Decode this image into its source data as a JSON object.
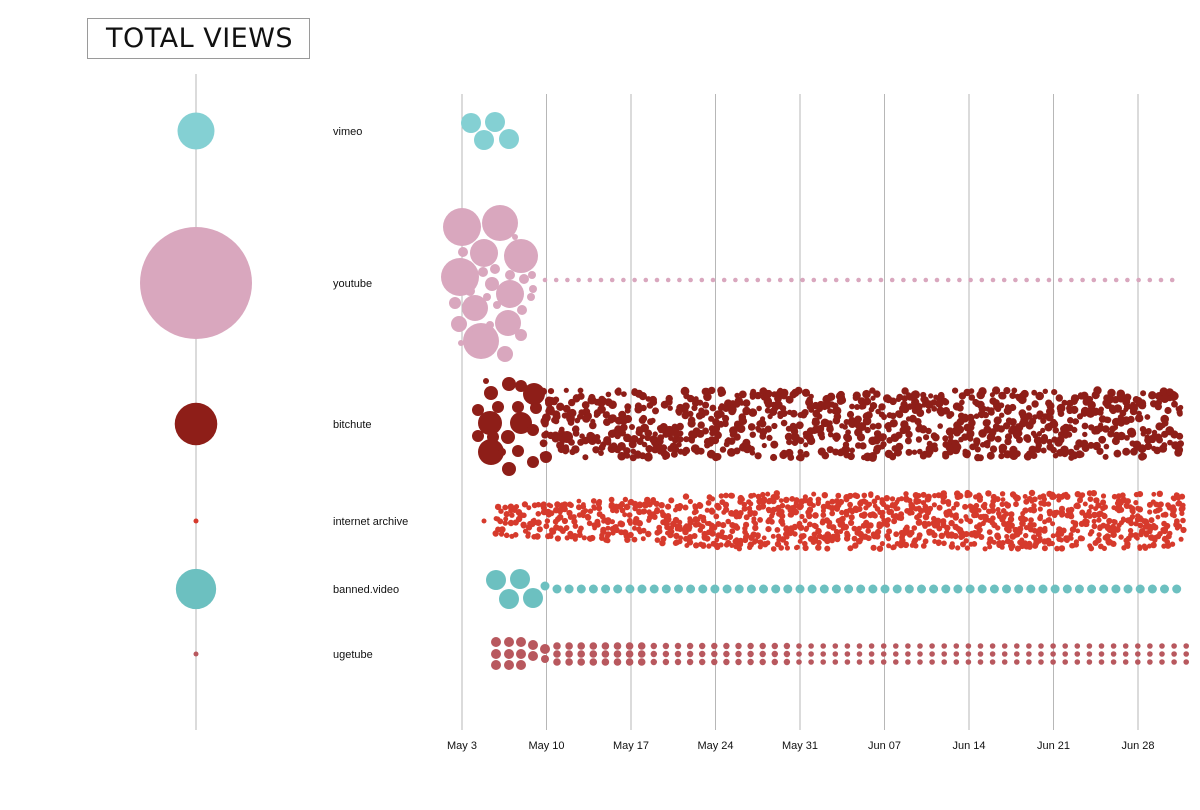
{
  "title": "TOTAL VIEWS",
  "colors": {
    "vimeo": "#84d0d3",
    "youtube": "#d9a7be",
    "bitchute": "#8e1e18",
    "internet_archive": "#d63a2c",
    "banned_video": "#6cc0c0",
    "ugetube": "#b8585e",
    "gridline": "#b7b7b7",
    "axis_line": "#b7b7b7"
  },
  "chart_data": {
    "type": "scatter",
    "subtype": "beeswarm timeline with total-size circles",
    "title": "TOTAL VIEWS",
    "x_axis": {
      "type": "date",
      "range": [
        "2020-05-03",
        "2020-07-02"
      ],
      "ticks": [
        {
          "date": "2020-05-03",
          "label": "May 3"
        },
        {
          "date": "2020-05-10",
          "label": "May 10"
        },
        {
          "date": "2020-05-17",
          "label": "May 17"
        },
        {
          "date": "2020-05-24",
          "label": "May 24"
        },
        {
          "date": "2020-05-31",
          "label": "May 31"
        },
        {
          "date": "2020-06-07",
          "label": "Jun 07"
        },
        {
          "date": "2020-06-14",
          "label": "Jun 14"
        },
        {
          "date": "2020-06-21",
          "label": "Jun 21"
        },
        {
          "date": "2020-06-28",
          "label": "Jun 28"
        }
      ],
      "grid": true
    },
    "series": [
      {
        "name": "vimeo",
        "total_relative": 0.33,
        "start": "2020-05-03",
        "end": "2020-05-07",
        "density": "sparse",
        "swarm": "few-large"
      },
      {
        "name": "youtube",
        "total_relative": 1.0,
        "start": "2020-05-02",
        "end": "2020-07-01",
        "density": "single-dotted-after-May-9",
        "swarm": "large-cluster"
      },
      {
        "name": "bitchute",
        "total_relative": 0.38,
        "start": "2020-05-04",
        "end": "2020-07-03",
        "density": "dense",
        "swarm": "dense-band"
      },
      {
        "name": "internet archive",
        "total_relative": 0.04,
        "start": "2020-05-05",
        "end": "2020-07-03",
        "density": "dense",
        "swarm": "dense-band"
      },
      {
        "name": "banned.video",
        "total_relative": 0.36,
        "start": "2020-05-05",
        "end": "2020-07-02",
        "density": "single-row",
        "swarm": "four-large-then-row"
      },
      {
        "name": "ugetube",
        "total_relative": 0.04,
        "start": "2020-05-05",
        "end": "2020-07-02",
        "density": "triple-row",
        "swarm": "cluster-then-columns"
      }
    ]
  }
}
